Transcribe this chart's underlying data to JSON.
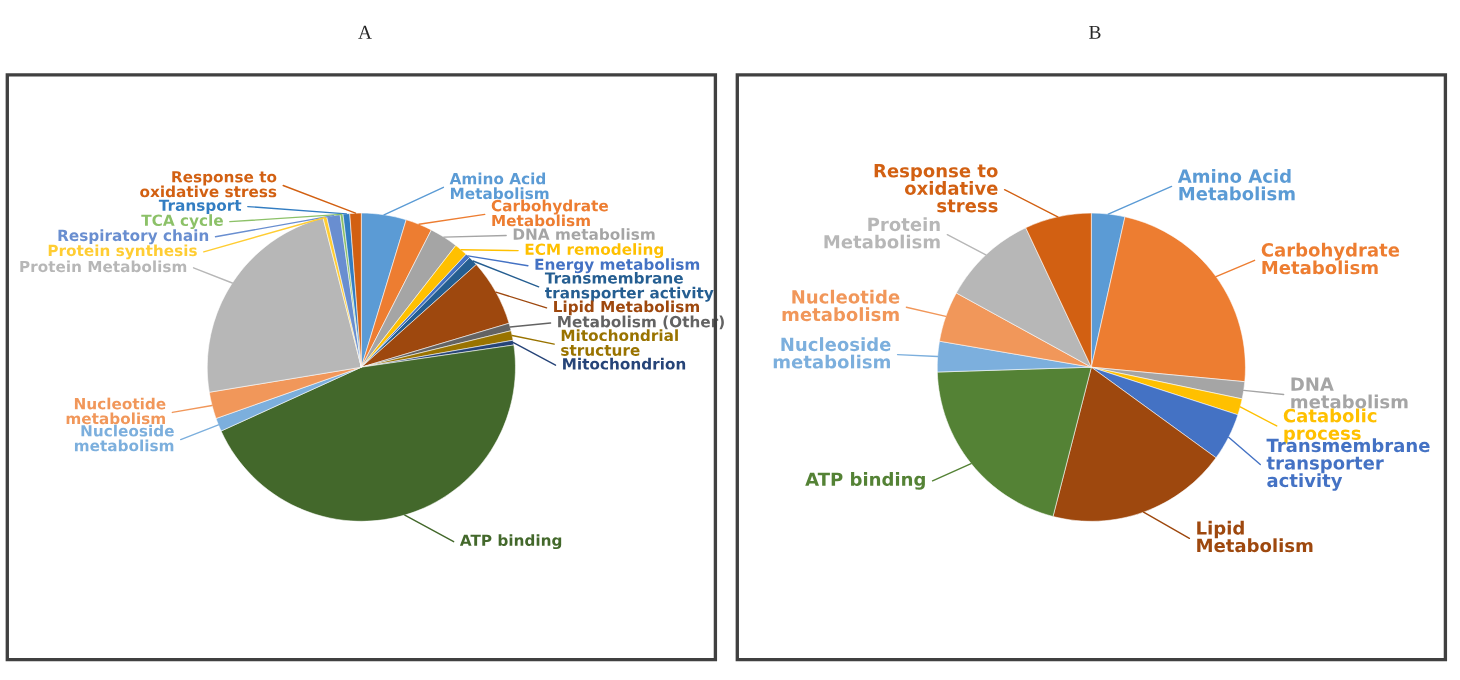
{
  "chart_data": [
    {
      "type": "pie",
      "title": "A",
      "categories": [
        "Amino Acid Metabolism",
        "Carbohydrate Metabolism",
        "DNA metabolism",
        "ECM remodeling",
        "Energy metabolism",
        "Transmembrane transporter activity",
        "Lipid Metabolism",
        "Metabolism (Other)",
        "Mitochondrial structure",
        "Mitochondrion",
        "ATP binding",
        "Nucleoside metabolism",
        "Nucleotide metabolism",
        "Protein Metabolism",
        "Protein synthesis",
        "Respiratory chain",
        "TCA cycle",
        "Transport",
        "Response to oxidative stress"
      ],
      "values": [
        4.7,
        2.8,
        3.0,
        1.4,
        0.5,
        1.0,
        7.0,
        0.8,
        1.0,
        0.5,
        45.5,
        1.4,
        2.8,
        23.6,
        0.4,
        1.4,
        0.3,
        0.7,
        1.2
      ],
      "colors": [
        "#5b9bd5",
        "#ed7d31",
        "#a5a5a5",
        "#ffc000",
        "#4472c4",
        "#255e91",
        "#9e480e",
        "#636363",
        "#997300",
        "#264478",
        "#43682b",
        "#7cafdd",
        "#f1975a",
        "#b7b7b7",
        "#ffcd33",
        "#698ed0",
        "#8cc168",
        "#327dc2",
        "#d26012"
      ]
    },
    {
      "type": "pie",
      "title": "B",
      "categories": [
        "Amino Acid Metabolism",
        "Carbohydrate Metabolism",
        "DNA metabolism",
        "Catabolic process",
        "Transmembrane transporter activity",
        "Lipid Metabolism",
        "ATP binding",
        "Nucleoside metabolism",
        "Nucleotide metabolism",
        "Protein Metabolism",
        "Response to oxidative stress"
      ],
      "values": [
        3.5,
        23.0,
        1.8,
        1.7,
        5.0,
        19.0,
        20.5,
        3.2,
        5.3,
        10.0,
        7.0
      ],
      "colors": [
        "#5b9bd5",
        "#ed7d31",
        "#a5a5a5",
        "#ffc000",
        "#4472c4",
        "#9e480e",
        "#548235",
        "#7cafdd",
        "#f1975a",
        "#b7b7b7",
        "#d26012"
      ]
    }
  ]
}
